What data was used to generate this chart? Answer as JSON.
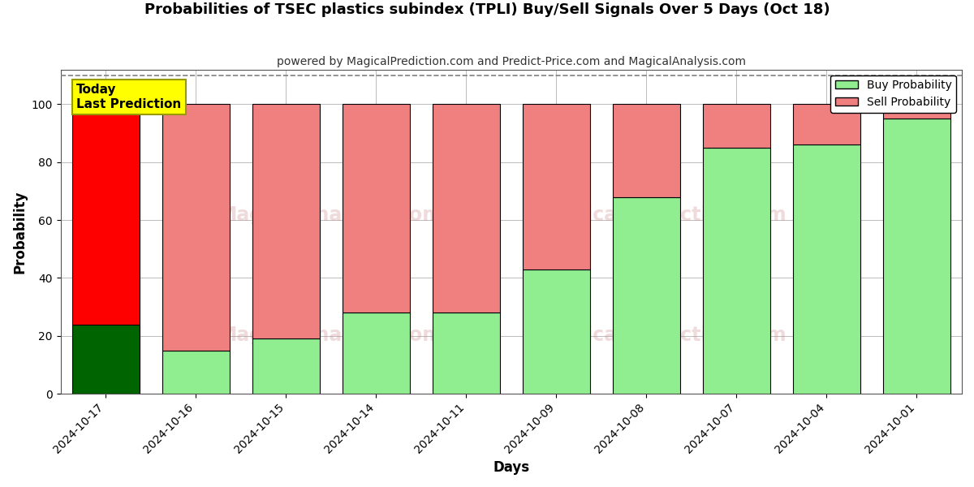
{
  "title": "Probabilities of TSEC plastics subindex (TPLI) Buy/Sell Signals Over 5 Days (Oct 18)",
  "subtitle": "powered by MagicalPrediction.com and Predict-Price.com and MagicalAnalysis.com",
  "xlabel": "Days",
  "ylabel": "Probability",
  "categories": [
    "2024-10-17",
    "2024-10-16",
    "2024-10-15",
    "2024-10-14",
    "2024-10-11",
    "2024-10-09",
    "2024-10-08",
    "2024-10-07",
    "2024-10-04",
    "2024-10-01"
  ],
  "buy_values": [
    24,
    15,
    19,
    28,
    28,
    43,
    68,
    85,
    86,
    95
  ],
  "sell_values": [
    76,
    85,
    81,
    72,
    72,
    57,
    32,
    15,
    14,
    5
  ],
  "today_buy_color": "#006400",
  "today_sell_color": "#FF0000",
  "buy_color": "#90EE90",
  "sell_color": "#F08080",
  "bar_edge_color": "#000000",
  "ylim": [
    0,
    112
  ],
  "yticks": [
    0,
    20,
    40,
    60,
    80,
    100
  ],
  "dashed_line_y": 110,
  "today_label": "Today\nLast Prediction",
  "today_box_color": "#FFFF00",
  "grid_color": "#bbbbbb",
  "background_color": "#ffffff",
  "bar_width": 0.75
}
